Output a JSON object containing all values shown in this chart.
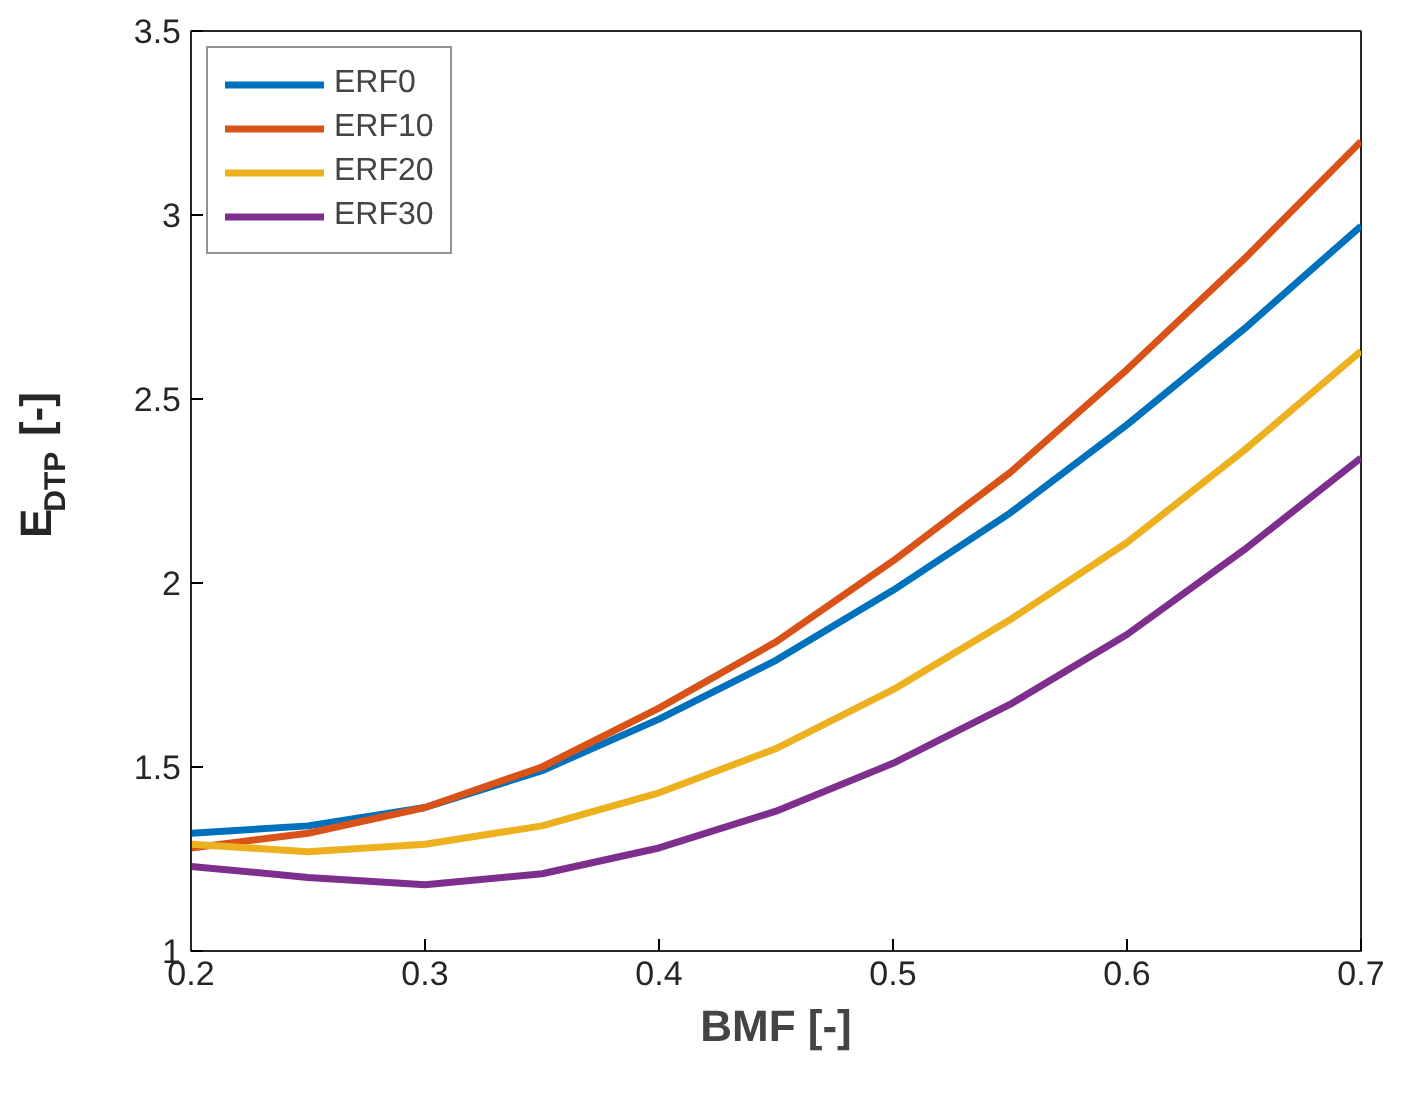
{
  "chart_data": {
    "type": "line",
    "xlabel": "BMF [-]",
    "ylabel": "E$_{DTP}$ [-]",
    "x": [
      0.2,
      0.25,
      0.3,
      0.35,
      0.4,
      0.45,
      0.5,
      0.55,
      0.6,
      0.65,
      0.7
    ],
    "series": [
      {
        "name": "ERF0",
        "color": "#0072bd",
        "values": [
          1.32,
          1.34,
          1.39,
          1.49,
          1.63,
          1.79,
          1.98,
          2.19,
          2.43,
          2.69,
          2.97
        ]
      },
      {
        "name": "ERF10",
        "color": "#d95319",
        "values": [
          1.28,
          1.32,
          1.39,
          1.5,
          1.66,
          1.84,
          2.06,
          2.3,
          2.58,
          2.88,
          3.2
        ]
      },
      {
        "name": "ERF20",
        "color": "#edb120",
        "values": [
          1.29,
          1.27,
          1.29,
          1.34,
          1.43,
          1.55,
          1.71,
          1.9,
          2.11,
          2.36,
          2.63
        ]
      },
      {
        "name": "ERF30",
        "color": "#7e2f8e",
        "values": [
          1.23,
          1.2,
          1.18,
          1.21,
          1.28,
          1.38,
          1.51,
          1.67,
          1.86,
          2.09,
          2.34
        ]
      }
    ],
    "xlim": [
      0.2,
      0.7
    ],
    "xticks": [
      0.2,
      0.3,
      0.4,
      0.5,
      0.6,
      0.7
    ],
    "ylim": [
      1,
      3.5
    ],
    "yticks": [
      1,
      1.5,
      2,
      2.5,
      3,
      3.5
    ],
    "grid": false,
    "legend": "top left",
    "marker": "none",
    "line_style": "solid"
  }
}
